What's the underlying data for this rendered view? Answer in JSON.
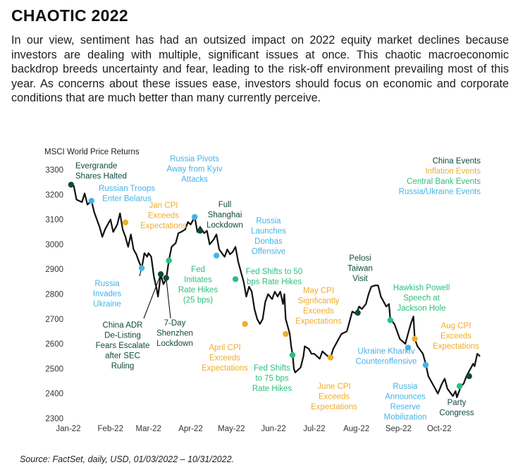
{
  "title": "CHAOTIC 2022",
  "intro": "In our view, sentiment has had an outsized impact on 2022 equity market declines because investors are dealing with multiple, significant issues at once. This chaotic macroeconomic backdrop breeds uncertainty and fear, leading to the risk-off environment prevailing most of this year. As concerns about these issues ease, investors should focus on economic and corporate conditions that are much better than many currently perceive.",
  "source": "Source: FactSet, daily, USD, 01/03/2022 – 10/31/2022.",
  "colors": {
    "line": "#111111",
    "china": "#0f4a3c",
    "inflation": "#f0ad2a",
    "central_bank": "#2bbf7e",
    "russia_ukraine": "#45b3e6",
    "axis_text": "#333333"
  },
  "chart_data": {
    "type": "line",
    "title": "MSCI World Price Returns",
    "xlabel": "",
    "ylabel": "",
    "ylim": [
      2300,
      3300
    ],
    "yticks": [
      2300,
      2400,
      2500,
      2600,
      2700,
      2800,
      2900,
      3000,
      3100,
      3200,
      3300
    ],
    "xlim": [
      "2022-01-01",
      "2022-11-01"
    ],
    "xticks": [
      {
        "date": "2022-01-01",
        "label": "Jan-22"
      },
      {
        "date": "2022-02-01",
        "label": "Feb-22"
      },
      {
        "date": "2022-03-01",
        "label": "Mar-22"
      },
      {
        "date": "2022-04-01",
        "label": "Apr-22"
      },
      {
        "date": "2022-05-01",
        "label": "May-22"
      },
      {
        "date": "2022-06-01",
        "label": "Jun-22"
      },
      {
        "date": "2022-07-01",
        "label": "Jul-22"
      },
      {
        "date": "2022-08-01",
        "label": "Aug-22"
      },
      {
        "date": "2022-09-01",
        "label": "Sep-22"
      },
      {
        "date": "2022-10-01",
        "label": "Oct-22"
      }
    ],
    "grid": false,
    "legend_position": "top-right",
    "legend": [
      {
        "label": "China Events",
        "category": "china"
      },
      {
        "label": "Inflation Events",
        "category": "inflation"
      },
      {
        "label": "Central Bank Events",
        "category": "central_bank"
      },
      {
        "label": "Russia/Ukraine Events",
        "category": "russia_ukraine"
      }
    ],
    "series": [
      {
        "values": [
          [
            "2022-01-03",
            3240
          ],
          [
            "2022-01-05",
            3235
          ],
          [
            "2022-01-07",
            3180
          ],
          [
            "2022-01-11",
            3170
          ],
          [
            "2022-01-13",
            3205
          ],
          [
            "2022-01-15",
            3160
          ],
          [
            "2022-01-18",
            3175
          ],
          [
            "2022-01-20",
            3130
          ],
          [
            "2022-01-24",
            3070
          ],
          [
            "2022-01-26",
            3030
          ],
          [
            "2022-01-28",
            3060
          ],
          [
            "2022-02-01",
            3100
          ],
          [
            "2022-02-03",
            3050
          ],
          [
            "2022-02-06",
            3080
          ],
          [
            "2022-02-08",
            3125
          ],
          [
            "2022-02-10",
            3060
          ],
          [
            "2022-02-12",
            3030
          ],
          [
            "2022-02-14",
            2990
          ],
          [
            "2022-02-16",
            3040
          ],
          [
            "2022-02-18",
            2980
          ],
          [
            "2022-02-20",
            2960
          ],
          [
            "2022-02-22",
            2930
          ],
          [
            "2022-02-24",
            2905
          ],
          [
            "2022-02-26",
            2965
          ],
          [
            "2022-02-28",
            2950
          ],
          [
            "2022-03-01",
            2965
          ],
          [
            "2022-03-03",
            2950
          ],
          [
            "2022-03-05",
            2870
          ],
          [
            "2022-03-07",
            2820
          ],
          [
            "2022-03-08",
            2790
          ],
          [
            "2022-03-10",
            2880
          ],
          [
            "2022-03-12",
            2840
          ],
          [
            "2022-03-14",
            2860
          ],
          [
            "2022-03-16",
            2935
          ],
          [
            "2022-03-18",
            2990
          ],
          [
            "2022-03-21",
            3005
          ],
          [
            "2022-03-23",
            3045
          ],
          [
            "2022-03-25",
            3050
          ],
          [
            "2022-03-28",
            3060
          ],
          [
            "2022-03-30",
            3090
          ],
          [
            "2022-04-01",
            3080
          ],
          [
            "2022-04-04",
            3110
          ],
          [
            "2022-04-06",
            3050
          ],
          [
            "2022-04-08",
            3070
          ],
          [
            "2022-04-11",
            3045
          ],
          [
            "2022-04-13",
            3055
          ],
          [
            "2022-04-15",
            3000
          ],
          [
            "2022-04-18",
            3020
          ],
          [
            "2022-04-20",
            3040
          ],
          [
            "2022-04-22",
            2980
          ],
          [
            "2022-04-24",
            2965
          ],
          [
            "2022-04-26",
            2950
          ],
          [
            "2022-04-28",
            2980
          ],
          [
            "2022-04-30",
            2960
          ],
          [
            "2022-05-02",
            2970
          ],
          [
            "2022-05-04",
            2990
          ],
          [
            "2022-05-06",
            2930
          ],
          [
            "2022-05-08",
            2890
          ],
          [
            "2022-05-10",
            2850
          ],
          [
            "2022-05-12",
            2790
          ],
          [
            "2022-05-14",
            2830
          ],
          [
            "2022-05-16",
            2810
          ],
          [
            "2022-05-18",
            2740
          ],
          [
            "2022-05-20",
            2700
          ],
          [
            "2022-05-22",
            2680
          ],
          [
            "2022-05-24",
            2700
          ],
          [
            "2022-05-26",
            2770
          ],
          [
            "2022-05-28",
            2800
          ],
          [
            "2022-05-31",
            2780
          ],
          [
            "2022-06-02",
            2810
          ],
          [
            "2022-06-04",
            2790
          ],
          [
            "2022-06-06",
            2810
          ],
          [
            "2022-06-08",
            2760
          ],
          [
            "2022-06-09",
            2800
          ],
          [
            "2022-06-10",
            2700
          ],
          [
            "2022-06-13",
            2640
          ],
          [
            "2022-06-14",
            2590
          ],
          [
            "2022-06-15",
            2560
          ],
          [
            "2022-06-16",
            2500
          ],
          [
            "2022-06-17",
            2485
          ],
          [
            "2022-06-21",
            2505
          ],
          [
            "2022-06-23",
            2550
          ],
          [
            "2022-06-24",
            2590
          ],
          [
            "2022-06-27",
            2580
          ],
          [
            "2022-06-29",
            2560
          ],
          [
            "2022-07-01",
            2560
          ],
          [
            "2022-07-05",
            2540
          ],
          [
            "2022-07-07",
            2570
          ],
          [
            "2022-07-11",
            2550
          ],
          [
            "2022-07-13",
            2545
          ],
          [
            "2022-07-15",
            2580
          ],
          [
            "2022-07-19",
            2620
          ],
          [
            "2022-07-21",
            2640
          ],
          [
            "2022-07-25",
            2650
          ],
          [
            "2022-07-27",
            2690
          ],
          [
            "2022-07-29",
            2730
          ],
          [
            "2022-08-01",
            2720
          ],
          [
            "2022-08-03",
            2750
          ],
          [
            "2022-08-05",
            2740
          ],
          [
            "2022-08-08",
            2760
          ],
          [
            "2022-08-10",
            2800
          ],
          [
            "2022-08-12",
            2830
          ],
          [
            "2022-08-15",
            2835
          ],
          [
            "2022-08-17",
            2835
          ],
          [
            "2022-08-19",
            2790
          ],
          [
            "2022-08-23",
            2750
          ],
          [
            "2022-08-25",
            2760
          ],
          [
            "2022-08-26",
            2700
          ],
          [
            "2022-08-29",
            2680
          ],
          [
            "2022-08-31",
            2650
          ],
          [
            "2022-09-02",
            2620
          ],
          [
            "2022-09-06",
            2600
          ],
          [
            "2022-09-08",
            2640
          ],
          [
            "2022-09-10",
            2680
          ],
          [
            "2022-09-12",
            2710
          ],
          [
            "2022-09-13",
            2620
          ],
          [
            "2022-09-15",
            2590
          ],
          [
            "2022-09-19",
            2560
          ],
          [
            "2022-09-21",
            2520
          ],
          [
            "2022-09-23",
            2470
          ],
          [
            "2022-09-26",
            2440
          ],
          [
            "2022-09-28",
            2420
          ],
          [
            "2022-09-30",
            2400
          ],
          [
            "2022-10-03",
            2440
          ],
          [
            "2022-10-05",
            2460
          ],
          [
            "2022-10-07",
            2420
          ],
          [
            "2022-10-11",
            2390
          ],
          [
            "2022-10-13",
            2410
          ],
          [
            "2022-10-14",
            2385
          ],
          [
            "2022-10-17",
            2430
          ],
          [
            "2022-10-19",
            2440
          ],
          [
            "2022-10-21",
            2470
          ],
          [
            "2022-10-24",
            2500
          ],
          [
            "2022-10-26",
            2520
          ],
          [
            "2022-10-27",
            2510
          ],
          [
            "2022-10-29",
            2560
          ],
          [
            "2022-10-31",
            2550
          ]
        ]
      }
    ],
    "events": [
      {
        "date": "2022-01-03",
        "value": 3240,
        "category": "china",
        "label": [
          "Evergrande",
          "Shares Halted"
        ]
      },
      {
        "date": "2022-01-18",
        "value": 3175,
        "category": "russia_ukraine",
        "label": [
          "Russian Troops",
          "Enter Belarus"
        ]
      },
      {
        "date": "2022-02-12",
        "value": 3088,
        "category": "inflation",
        "label": [
          "Jan CPI",
          "Exceeds",
          "Expectations"
        ]
      },
      {
        "date": "2022-02-24",
        "value": 2905,
        "category": "russia_ukraine",
        "label": [
          "Russia",
          "Invades",
          "Ukraine"
        ]
      },
      {
        "date": "2022-03-10",
        "value": 2880,
        "category": "china",
        "label": [
          "China ADR",
          "De-Listing",
          "Fears Escalate",
          "after SEC",
          "Ruling"
        ]
      },
      {
        "date": "2022-03-14",
        "value": 2865,
        "category": "china",
        "label": [
          "7-Day",
          "Shenzhen",
          "Lockdown"
        ]
      },
      {
        "date": "2022-03-16",
        "value": 2935,
        "category": "central_bank",
        "label": [
          "Fed",
          "Initiates",
          "Rate Hikes",
          "(25 bps)"
        ]
      },
      {
        "date": "2022-04-04",
        "value": 3110,
        "category": "russia_ukraine",
        "label": [
          "Russia Pivots",
          "Away from Kyiv",
          "Attacks"
        ]
      },
      {
        "date": "2022-04-08",
        "value": 3055,
        "category": "china",
        "label": [
          "Full",
          "Shanghai",
          "Lockdown"
        ]
      },
      {
        "date": "2022-04-20",
        "value": 2955,
        "category": "russia_ukraine",
        "label": [
          "Russia",
          "Launches",
          "Donbas",
          "Offensive"
        ]
      },
      {
        "date": "2022-05-04",
        "value": 2860,
        "category": "central_bank",
        "label": [
          "Fed Shifts to 50",
          "bps Rate Hikes"
        ]
      },
      {
        "date": "2022-05-11",
        "value": 2680,
        "category": "inflation",
        "label": [
          "April CPI",
          "Exceeds",
          "Expectations"
        ]
      },
      {
        "date": "2022-06-10",
        "value": 2640,
        "category": "inflation",
        "label": [
          "May CPI",
          "Signficantly",
          "Exceeds",
          "Expectations"
        ]
      },
      {
        "date": "2022-06-15",
        "value": 2555,
        "category": "central_bank",
        "label": [
          "Fed Shifts",
          "to 75 bps",
          "Rate Hikes"
        ]
      },
      {
        "date": "2022-07-13",
        "value": 2545,
        "category": "inflation",
        "label": [
          "June CPI",
          "Exceeds",
          "Expectations"
        ]
      },
      {
        "date": "2022-08-02",
        "value": 2725,
        "category": "china",
        "label": [
          "Pelosi",
          "Taiwan",
          "Visit"
        ]
      },
      {
        "date": "2022-08-26",
        "value": 2695,
        "category": "central_bank",
        "label": [
          "Hawkish Powell",
          "Speech at",
          "Jackson Hole"
        ]
      },
      {
        "date": "2022-09-08",
        "value": 2585,
        "category": "russia_ukraine",
        "label": [
          "Ukraine Kharkiv",
          "Counteroffensive"
        ]
      },
      {
        "date": "2022-09-13",
        "value": 2620,
        "category": "inflation",
        "label": [
          "Aug CPI",
          "Exceeds",
          "Expectations"
        ]
      },
      {
        "date": "2022-09-21",
        "value": 2515,
        "category": "russia_ukraine",
        "label": [
          "Russia",
          "Announces",
          "Reserve",
          "Mobilization"
        ]
      },
      {
        "date": "2022-10-16",
        "value": 2430,
        "category": "central_bank",
        "label": []
      },
      {
        "date": "2022-10-23",
        "value": 2470,
        "category": "china",
        "label": [
          "Party",
          "Congress"
        ]
      }
    ]
  }
}
